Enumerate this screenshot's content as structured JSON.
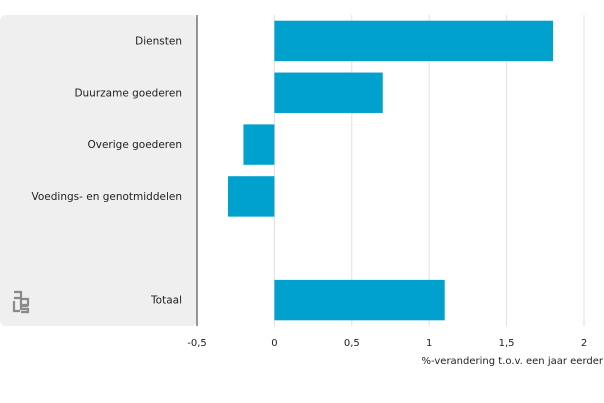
{
  "chart_data": {
    "type": "bar",
    "orientation": "horizontal",
    "categories": [
      "Diensten",
      "Duurzame goederen",
      "Overige goederen",
      "Voedings- en genotmiddelen",
      "",
      "Totaal"
    ],
    "values": [
      1.8,
      0.7,
      -0.2,
      -0.3,
      null,
      1.1
    ],
    "xlabel": "%-verandering t.o.v. een jaar eerder",
    "xlim": [
      -0.5,
      2
    ],
    "xticks": [
      -0.5,
      0,
      0.5,
      1,
      1.5,
      2
    ],
    "xtick_labels": [
      "-0,5",
      "0",
      "0,5",
      "1",
      "1,5",
      "2"
    ],
    "grid": "vertical",
    "bar_color": "#00a1cd",
    "label_panel_color": "#efefef",
    "gridline_color": "#e1e1e1"
  },
  "logo": {
    "icon": "cbs-logo-icon",
    "text": "cbs"
  }
}
